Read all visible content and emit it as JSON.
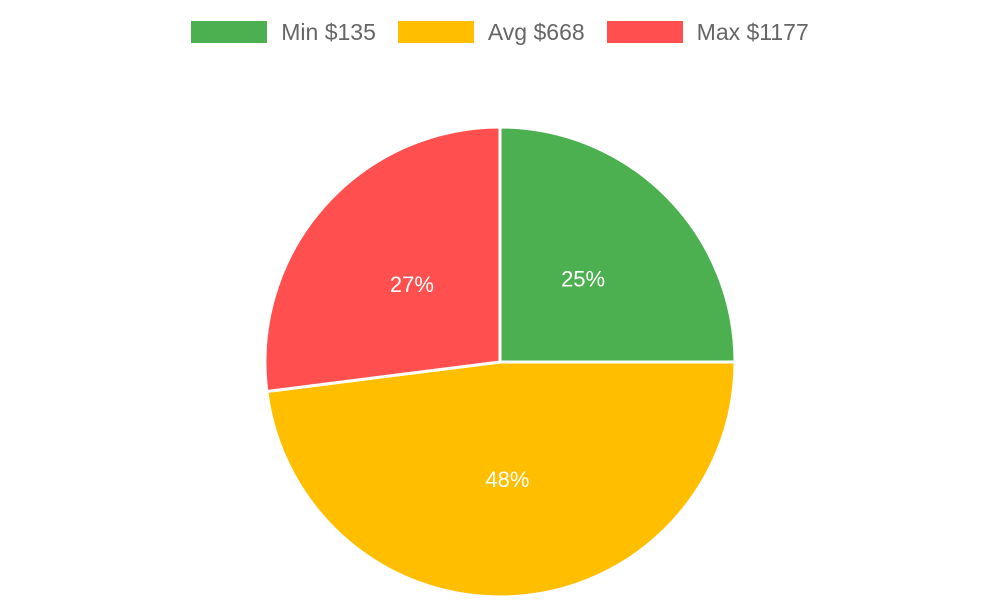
{
  "chart_data": {
    "type": "pie",
    "categories": [
      "Min $135",
      "Avg $668",
      "Max $1177"
    ],
    "values": [
      25,
      48,
      27
    ],
    "value_labels": [
      "25%",
      "48%",
      "27%"
    ],
    "colors": [
      "#4caf50",
      "#ffbf00",
      "#ff4f4f"
    ],
    "legend_position": "top",
    "start_angle_deg": 0,
    "direction": "clockwise"
  }
}
